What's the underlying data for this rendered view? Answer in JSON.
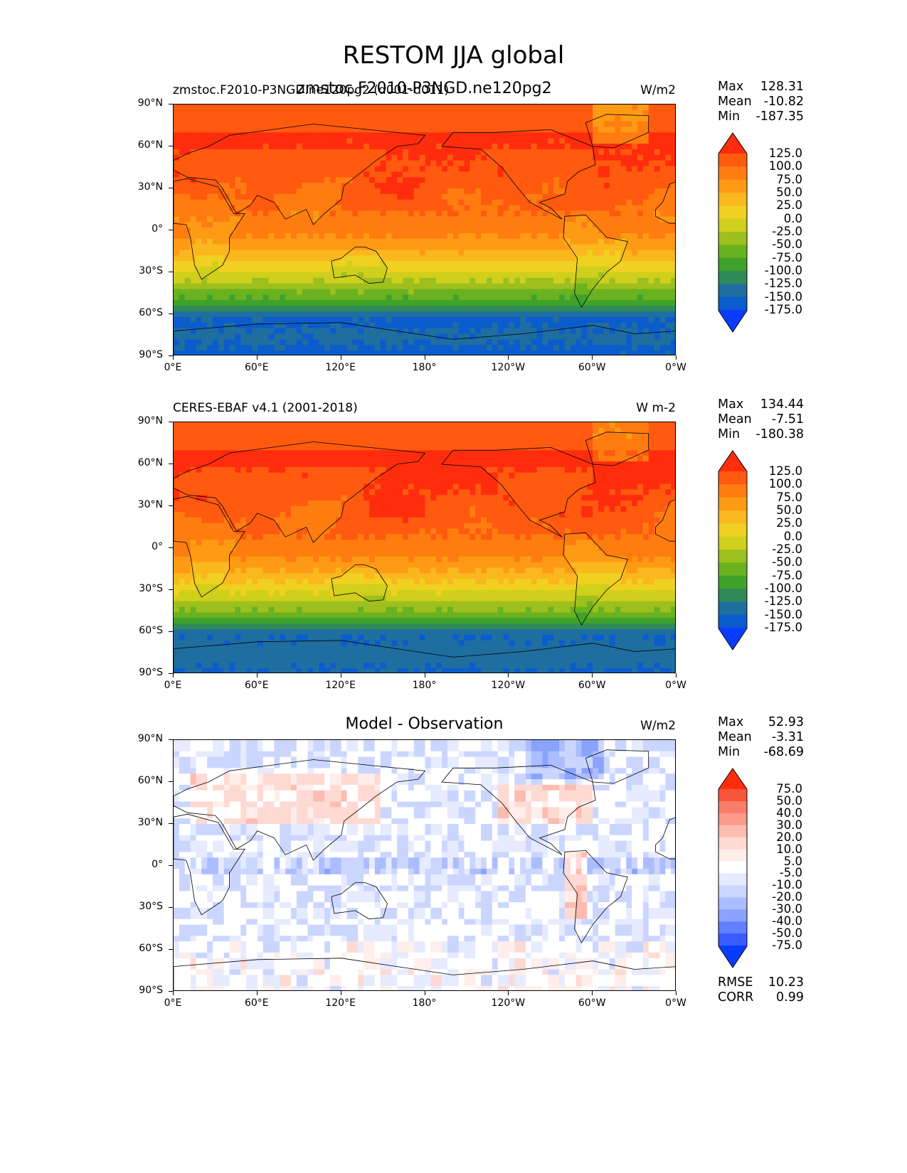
{
  "figure": {
    "title": "RESTOM JJA global"
  },
  "chart_data": [
    {
      "type": "heatmap",
      "title": "zmstoc.F2010-P3NGD.ne120pg2",
      "subtitle_left": "zmstoc.F2010-P3NGD.ne120pg2 (d001-d011)",
      "units": "W/m2",
      "stats": [
        {
          "label": "Max",
          "value": "128.31"
        },
        {
          "label": "Mean",
          "value": "-10.82"
        },
        {
          "label": "Min",
          "value": "-187.35"
        }
      ],
      "colorbar": {
        "levels": [
          "125.0",
          "100.0",
          "75.0",
          "50.0",
          "25.0",
          "0.0",
          "-25.0",
          "-50.0",
          "-75.0",
          "-100.0",
          "-125.0",
          "-150.0",
          "-175.0"
        ],
        "colors": [
          "#ff2d0d",
          "#ff5a0f",
          "#ff7d10",
          "#ff9a14",
          "#fbb71e",
          "#f0d020",
          "#cfcf1c",
          "#9dc01e",
          "#6ab21f",
          "#3fa22a",
          "#2f8a58",
          "#1f6ea0",
          "#0b5ccc",
          "#0a3cff"
        ]
      },
      "field": {
        "min": -187.35,
        "max": 128.31,
        "mean": -10.82
      }
    },
    {
      "type": "heatmap",
      "title": "",
      "subtitle_left": "CERES-EBAF v4.1 (2001-2018)",
      "units": "W m-2",
      "stats": [
        {
          "label": "Max",
          "value": "134.44"
        },
        {
          "label": "Mean",
          "value": "-7.51"
        },
        {
          "label": "Min",
          "value": "-180.38"
        }
      ],
      "colorbar": {
        "levels": [
          "125.0",
          "100.0",
          "75.0",
          "50.0",
          "25.0",
          "0.0",
          "-25.0",
          "-50.0",
          "-75.0",
          "-100.0",
          "-125.0",
          "-150.0",
          "-175.0"
        ],
        "colors": [
          "#ff2d0d",
          "#ff5a0f",
          "#ff7d10",
          "#ff9a14",
          "#fbb71e",
          "#f0d020",
          "#cfcf1c",
          "#9dc01e",
          "#6ab21f",
          "#3fa22a",
          "#2f8a58",
          "#1f6ea0",
          "#0b5ccc",
          "#0a3cff"
        ]
      },
      "field": {
        "min": -180.38,
        "max": 134.44,
        "mean": -7.51
      }
    },
    {
      "type": "heatmap",
      "title": "Model - Observation",
      "subtitle_left": "",
      "units": "W/m2",
      "stats": [
        {
          "label": "Max",
          "value": "52.93"
        },
        {
          "label": "Mean",
          "value": "-3.31"
        },
        {
          "label": "Min",
          "value": "-68.69"
        }
      ],
      "extra_stats": [
        {
          "label": "RMSE",
          "value": "10.23"
        },
        {
          "label": "CORR",
          "value": "0.99"
        }
      ],
      "colorbar": {
        "levels": [
          "75.0",
          "50.0",
          "40.0",
          "30.0",
          "20.0",
          "10.0",
          "5.0",
          "-5.0",
          "-10.0",
          "-20.0",
          "-30.0",
          "-40.0",
          "-50.0",
          "-75.0"
        ],
        "colors": [
          "#ff2d0d",
          "#f8553b",
          "#fa7d6a",
          "#fc9a8c",
          "#fdbcb0",
          "#fedad3",
          "#ffeeea",
          "#ffffff",
          "#e6ebff",
          "#cbd6ff",
          "#acbdff",
          "#8aa3ff",
          "#6080ff",
          "#3b5cff",
          "#0a3cff"
        ]
      },
      "field": {
        "min": -68.69,
        "max": 52.93,
        "mean": -3.31
      }
    }
  ],
  "axes": {
    "ylabels": [
      "90°N",
      "60°N",
      "30°N",
      "0°",
      "30°S",
      "60°S",
      "90°S"
    ],
    "xlabels": [
      "0°E",
      "60°E",
      "120°E",
      "180°",
      "120°W",
      "60°W",
      "0°W"
    ]
  }
}
